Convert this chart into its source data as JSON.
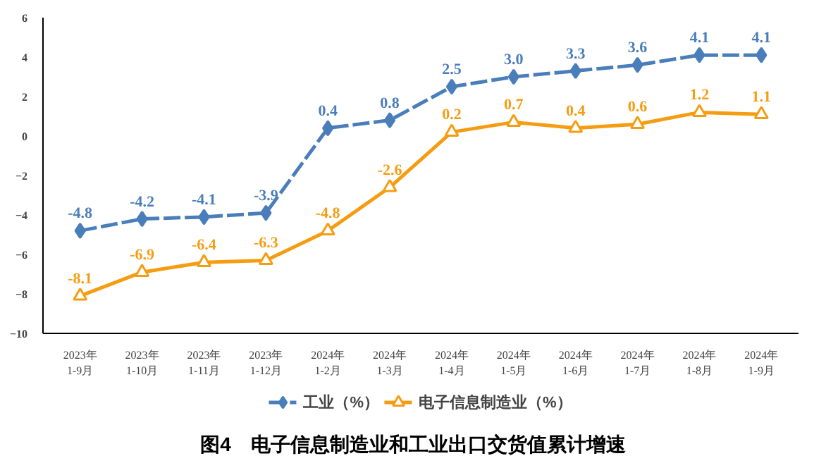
{
  "chart_data": {
    "type": "line",
    "title": "图4　电子信息制造业和工业出口交货值累计增速",
    "categories": [
      "2023年\n1-9月",
      "2023年\n1-10月",
      "2023年\n1-11月",
      "2023年\n1-12月",
      "2024年\n1-2月",
      "2024年\n1-3月",
      "2024年\n1-4月",
      "2024年\n1-5月",
      "2024年\n1-6月",
      "2024年\n1-7月",
      "2024年\n1-8月",
      "2024年\n1-9月"
    ],
    "series": [
      {
        "name": "工业（%）",
        "color": "#4a7ebb",
        "marker": "diamond",
        "line_style": "dashed",
        "values": [
          -4.8,
          -4.2,
          -4.1,
          -3.9,
          0.4,
          0.8,
          2.5,
          3.0,
          3.3,
          3.6,
          4.1,
          4.1
        ],
        "value_labels": [
          "-4.8",
          "-4.2",
          "-4.1",
          "-3.9",
          "0.4",
          "0.8",
          "2.5",
          "3.0",
          "3.3",
          "3.6",
          "4.1",
          "4.1"
        ]
      },
      {
        "name": "电子信息制造业（%）",
        "color": "#f59d12",
        "marker": "triangle",
        "line_style": "solid",
        "values": [
          -8.1,
          -6.9,
          -6.4,
          -6.3,
          -4.8,
          -2.6,
          0.2,
          0.7,
          0.4,
          0.6,
          1.2,
          1.1
        ],
        "value_labels": [
          "-8.1",
          "-6.9",
          "-6.4",
          "-6.3",
          "-4.8",
          "-2.6",
          "0.2",
          "0.7",
          "0.4",
          "0.6",
          "1.2",
          "1.1"
        ]
      }
    ],
    "ylim": [
      -10,
      6
    ],
    "yticks": [
      -10,
      -8,
      -6,
      -4,
      -2,
      0,
      2,
      4,
      6
    ],
    "legend": "bottom"
  }
}
